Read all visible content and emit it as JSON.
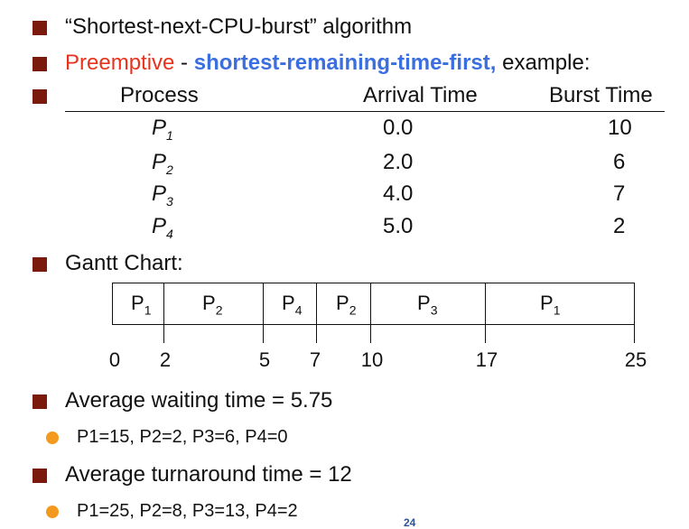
{
  "bullets": {
    "b1": "“Shortest-next-CPU-burst” algorithm",
    "b2_red": "Preemptive",
    "b2_dash": " - ",
    "b2_blue": "shortest-remaining-time-first,",
    "b2_tail": " example:",
    "gantt_label": "Gantt Chart:",
    "avg_wait": "Average waiting time = 5.75",
    "wait_detail": "P1=15, P2=2, P3=6, P4=0",
    "avg_turn": "Average turnaround time = 12",
    "turn_detail": "P1=25, P2=8, P3=13, P4=2"
  },
  "table": {
    "headers": [
      "Process",
      "Arrival Time",
      "Burst Time"
    ],
    "rows": [
      {
        "p": "P",
        "sub": "1",
        "arrival": "0.0",
        "burst": "10"
      },
      {
        "p": "P",
        "sub": "2",
        "arrival": "2.0",
        "burst": "6"
      },
      {
        "p": "P",
        "sub": "3",
        "arrival": "4.0",
        "burst": "7"
      },
      {
        "p": "P",
        "sub": "4",
        "arrival": "5.0",
        "burst": "2"
      }
    ]
  },
  "gantt": {
    "blocks": [
      {
        "p": "P",
        "sub": "1"
      },
      {
        "p": "P",
        "sub": "2"
      },
      {
        "p": "P",
        "sub": "4"
      },
      {
        "p": "P",
        "sub": "2"
      },
      {
        "p": "P",
        "sub": "3"
      },
      {
        "p": "P",
        "sub": "1"
      }
    ],
    "times": [
      "0",
      "2",
      "5",
      "7",
      "10",
      "17",
      "25"
    ]
  },
  "page_number": "24",
  "colors": {
    "bullet": "#7a1a0c",
    "dot": "#f39a1e",
    "red": "#e8321e",
    "blue": "#3b6fe0"
  }
}
